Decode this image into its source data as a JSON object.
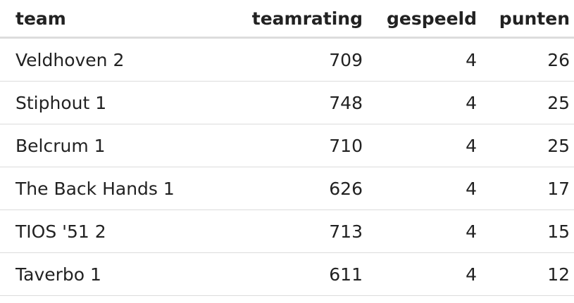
{
  "table": {
    "columns": [
      "team",
      "teamrating",
      "gespeeld",
      "punten"
    ],
    "rows": [
      [
        "Veldhoven 2",
        709,
        4,
        26
      ],
      [
        "Stiphout 1",
        748,
        4,
        25
      ],
      [
        "Belcrum 1",
        710,
        4,
        25
      ],
      [
        "The Back Hands 1",
        626,
        4,
        17
      ],
      [
        "TIOS '51 2",
        713,
        4,
        15
      ],
      [
        "Taverbo 1",
        611,
        4,
        12
      ]
    ]
  }
}
